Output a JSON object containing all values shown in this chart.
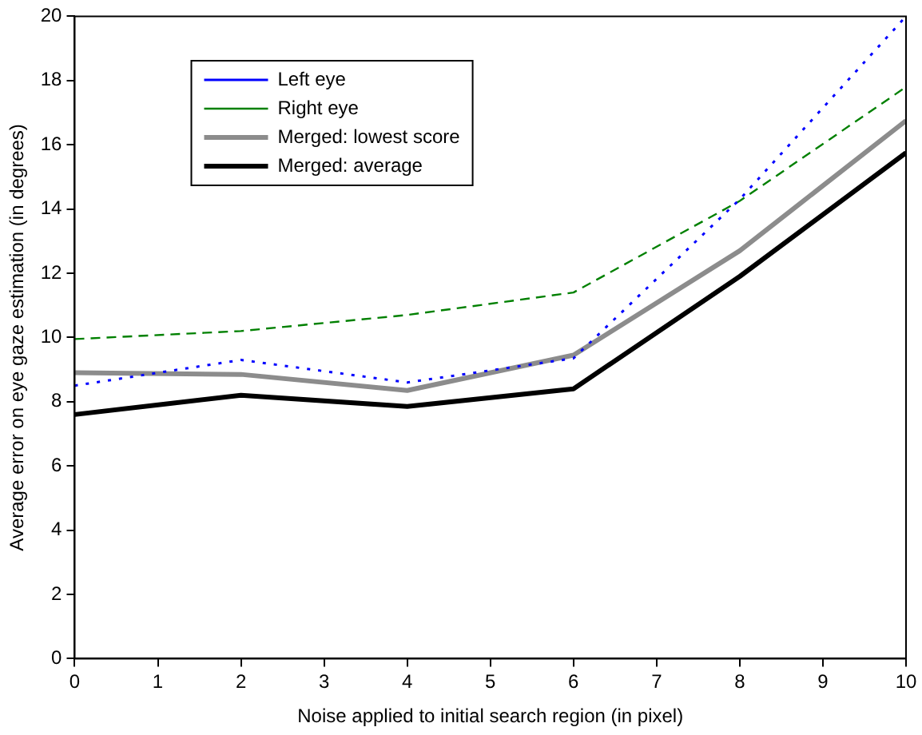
{
  "chart_data": {
    "type": "line",
    "xlabel": "Noise applied to initial search region (in pixel)",
    "ylabel": "Average error on eye gaze estimation (in degrees)",
    "x": [
      0,
      2,
      4,
      6,
      8,
      10
    ],
    "xlim": [
      0,
      10
    ],
    "xticks": [
      0,
      1,
      2,
      3,
      4,
      5,
      6,
      7,
      8,
      9,
      10
    ],
    "ylim": [
      0,
      20
    ],
    "yticks": [
      0,
      2,
      4,
      6,
      8,
      10,
      12,
      14,
      16,
      18,
      20
    ],
    "series": [
      {
        "name": "Left eye",
        "color": "#0000ff",
        "line_style": "dotted",
        "values": [
          8.5,
          9.3,
          8.6,
          9.35,
          14.3,
          20
        ]
      },
      {
        "name": "Right eye",
        "color": "#008000",
        "line_style": "dashed",
        "values": [
          9.95,
          10.2,
          10.7,
          11.4,
          14.25,
          17.8
        ]
      },
      {
        "name": "Merged: lowest score",
        "color": "#8c8c8c",
        "line_style": "solid",
        "values": [
          8.9,
          8.85,
          8.35,
          9.45,
          12.7,
          16.75
        ]
      },
      {
        "name": "Merged: average",
        "color": "#000000",
        "line_style": "solid",
        "values": [
          7.6,
          8.2,
          7.85,
          8.4,
          11.9,
          15.75
        ]
      }
    ],
    "legend": "top left",
    "grid": false,
    "marker": "none"
  }
}
